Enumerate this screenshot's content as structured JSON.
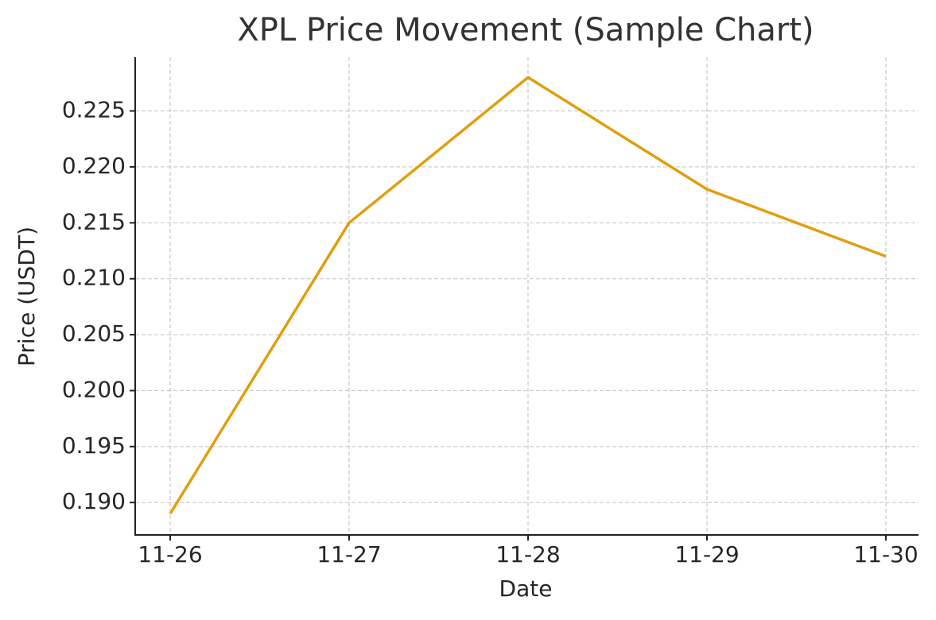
{
  "chart_data": {
    "type": "line",
    "title": "XPL Price Movement (Sample Chart)",
    "x_label": "Date",
    "y_label": "Price (USDT)",
    "categories": [
      "11-26",
      "11-27",
      "11-28",
      "11-29",
      "11-30"
    ],
    "series": [
      {
        "name": "XPL",
        "color": "#e09f0e",
        "values": [
          0.189,
          0.215,
          0.228,
          0.218,
          0.212
        ]
      }
    ],
    "ylim": [
      0.1871,
      0.2298
    ],
    "yticks": [
      {
        "value": 0.19,
        "label": "0.190"
      },
      0.195,
      {
        "value": 0.2,
        "label": "0.200"
      },
      0.205,
      {
        "value": 0.21,
        "label": "0.210"
      },
      0.215,
      {
        "value": 0.22,
        "label": "0.220"
      },
      0.225
    ],
    "grid": true
  }
}
